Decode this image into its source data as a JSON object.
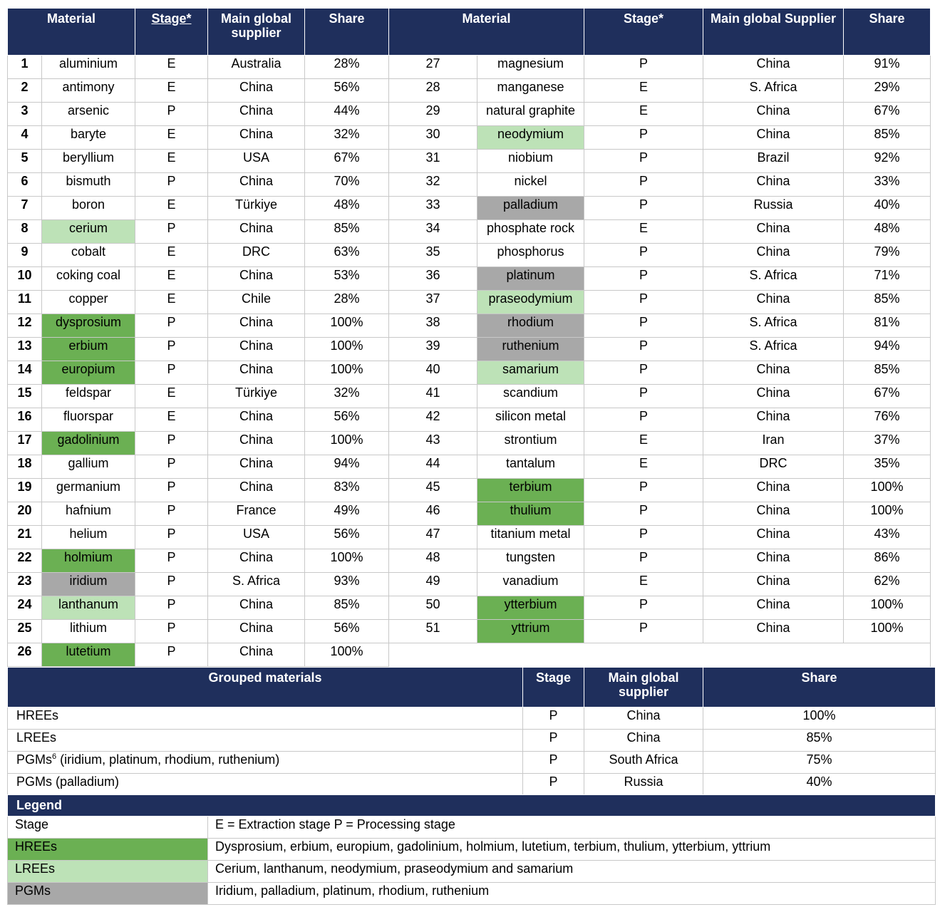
{
  "main_table": {
    "headers": {
      "material": "Material",
      "stage": "Stage*",
      "supplier_left": "Main global supplier",
      "share": "Share",
      "supplier_right": "Main global Supplier"
    },
    "rows": [
      {
        "n": "1",
        "material": "aluminium",
        "stage": "E",
        "supplier": "Australia",
        "share": "28%",
        "n2": "27",
        "material2": "magnesium",
        "stage2": "P",
        "supplier2": "China",
        "share2": "91%"
      },
      {
        "n": "2",
        "material": "antimony",
        "stage": "E",
        "supplier": "China",
        "share": "56%",
        "n2": "28",
        "material2": "manganese",
        "stage2": "E",
        "supplier2": "S. Africa",
        "share2": "29%"
      },
      {
        "n": "3",
        "material": "arsenic",
        "stage": "P",
        "supplier": "China",
        "share": "44%",
        "n2": "29",
        "material2": "natural graphite",
        "stage2": "E",
        "supplier2": "China",
        "share2": "67%"
      },
      {
        "n": "4",
        "material": "baryte",
        "stage": "E",
        "supplier": "China",
        "share": "32%",
        "n2": "30",
        "material2": "neodymium",
        "stage2": "P",
        "supplier2": "China",
        "share2": "85%"
      },
      {
        "n": "5",
        "material": "beryllium",
        "stage": "E",
        "supplier": "USA",
        "share": "67%",
        "n2": "31",
        "material2": "niobium",
        "stage2": "P",
        "supplier2": "Brazil",
        "share2": "92%"
      },
      {
        "n": "6",
        "material": "bismuth",
        "stage": "P",
        "supplier": "China",
        "share": "70%",
        "n2": "32",
        "material2": "nickel",
        "stage2": "P",
        "supplier2": "China",
        "share2": "33%"
      },
      {
        "n": "7",
        "material": "boron",
        "stage": "E",
        "supplier": "Türkiye",
        "share": "48%",
        "n2": "33",
        "material2": "palladium",
        "stage2": "P",
        "supplier2": "Russia",
        "share2": "40%"
      },
      {
        "n": "8",
        "material": "cerium",
        "stage": "P",
        "supplier": "China",
        "share": "85%",
        "n2": "34",
        "material2": "phosphate rock",
        "stage2": "E",
        "supplier2": "China",
        "share2": "48%"
      },
      {
        "n": "9",
        "material": "cobalt",
        "stage": "E",
        "supplier": "DRC",
        "share": "63%",
        "n2": "35",
        "material2": "phosphorus",
        "stage2": "P",
        "supplier2": "China",
        "share2": "79%"
      },
      {
        "n": "10",
        "material": "coking coal",
        "stage": "E",
        "supplier": "China",
        "share": "53%",
        "n2": "36",
        "material2": "platinum",
        "stage2": "P",
        "supplier2": "S. Africa",
        "share2": "71%"
      },
      {
        "n": "11",
        "material": "copper",
        "stage": "E",
        "supplier": "Chile",
        "share": "28%",
        "n2": "37",
        "material2": "praseodymium",
        "stage2": "P",
        "supplier2": "China",
        "share2": "85%"
      },
      {
        "n": "12",
        "material": "dysprosium",
        "stage": "P",
        "supplier": "China",
        "share": "100%",
        "n2": "38",
        "material2": "rhodium",
        "stage2": "P",
        "supplier2": "S. Africa",
        "share2": "81%"
      },
      {
        "n": "13",
        "material": "erbium",
        "stage": "P",
        "supplier": "China",
        "share": "100%",
        "n2": "39",
        "material2": "ruthenium",
        "stage2": "P",
        "supplier2": "S. Africa",
        "share2": "94%"
      },
      {
        "n": "14",
        "material": "europium",
        "stage": "P",
        "supplier": "China",
        "share": "100%",
        "n2": "40",
        "material2": "samarium",
        "stage2": "P",
        "supplier2": "China",
        "share2": "85%"
      },
      {
        "n": "15",
        "material": "feldspar",
        "stage": "E",
        "supplier": "Türkiye",
        "share": "32%",
        "n2": "41",
        "material2": "scandium",
        "stage2": "P",
        "supplier2": "China",
        "share2": "67%"
      },
      {
        "n": "16",
        "material": "fluorspar",
        "stage": "E",
        "supplier": "China",
        "share": "56%",
        "n2": "42",
        "material2": "silicon metal",
        "stage2": "P",
        "supplier2": "China",
        "share2": "76%"
      },
      {
        "n": "17",
        "material": "gadolinium",
        "stage": "P",
        "supplier": "China",
        "share": "100%",
        "n2": "43",
        "material2": "strontium",
        "stage2": "E",
        "supplier2": "Iran",
        "share2": "37%"
      },
      {
        "n": "18",
        "material": "gallium",
        "stage": "P",
        "supplier": "China",
        "share": "94%",
        "n2": "44",
        "material2": "tantalum",
        "stage2": "E",
        "supplier2": "DRC",
        "share2": "35%"
      },
      {
        "n": "19",
        "material": "germanium",
        "stage": "P",
        "supplier": "China",
        "share": "83%",
        "n2": "45",
        "material2": "terbium",
        "stage2": "P",
        "supplier2": "China",
        "share2": "100%"
      },
      {
        "n": "20",
        "material": "hafnium",
        "stage": "P",
        "supplier": "France",
        "share": "49%",
        "n2": "46",
        "material2": "thulium",
        "stage2": "P",
        "supplier2": "China",
        "share2": "100%"
      },
      {
        "n": "21",
        "material": "helium",
        "stage": "P",
        "supplier": "USA",
        "share": "56%",
        "n2": "47",
        "material2": "titanium metal",
        "stage2": "P",
        "supplier2": "China",
        "share2": "43%"
      },
      {
        "n": "22",
        "material": "holmium",
        "stage": "P",
        "supplier": "China",
        "share": "100%",
        "n2": "48",
        "material2": "tungsten",
        "stage2": "P",
        "supplier2": "China",
        "share2": "86%"
      },
      {
        "n": "23",
        "material": "iridium",
        "stage": "P",
        "supplier": "S. Africa",
        "share": "93%",
        "n2": "49",
        "material2": "vanadium",
        "stage2": "E",
        "supplier2": "China",
        "share2": "62%"
      },
      {
        "n": "24",
        "material": "lanthanum",
        "stage": "P",
        "supplier": "China",
        "share": "85%",
        "n2": "50",
        "material2": "ytterbium",
        "stage2": "P",
        "supplier2": "China",
        "share2": "100%"
      },
      {
        "n": "25",
        "material": "lithium",
        "stage": "P",
        "supplier": "China",
        "share": "56%",
        "n2": "51",
        "material2": "yttrium",
        "stage2": "P",
        "supplier2": "China",
        "share2": "100%"
      },
      {
        "n": "26",
        "material": "lutetium",
        "stage": "P",
        "supplier": "China",
        "share": "100%"
      }
    ]
  },
  "grouped_table": {
    "headers": {
      "grouped": "Grouped materials",
      "stage": "Stage",
      "supplier": "Main global supplier",
      "share": "Share"
    },
    "rows": [
      {
        "group": "HREEs",
        "stage": "P",
        "supplier": "China",
        "share": "100%"
      },
      {
        "group": "LREEs",
        "stage": "P",
        "supplier": "China",
        "share": "85%"
      },
      {
        "group": "PGMs",
        "sup": "6",
        "group_rest": " (iridium, platinum, rhodium, ruthenium)",
        "stage": "P",
        "supplier": "South Africa",
        "share": "75%"
      },
      {
        "group": "PGMs (palladium)",
        "stage": "P",
        "supplier": "Russia",
        "share": "40%"
      }
    ]
  },
  "legend": {
    "title": "Legend",
    "rows": [
      {
        "key": "Stage",
        "desc": "E = Extraction stage P = Processing stage"
      },
      {
        "key": "HREEs",
        "desc": "Dysprosium, erbium, europium, gadolinium, holmium, lutetium, terbium, thulium, ytterbium, yttrium"
      },
      {
        "key": "LREEs",
        "desc": "Cerium, lanthanum, neodymium, praseodymium and samarium"
      },
      {
        "key": "PGMs",
        "desc": "Iridium, palladium, platinum, rhodium, ruthenium"
      }
    ]
  },
  "colors": {
    "header_bg": "#1f2f5c",
    "hree": "#6bb053",
    "lree": "#bde2b7",
    "pgm": "#a8a8a8"
  }
}
